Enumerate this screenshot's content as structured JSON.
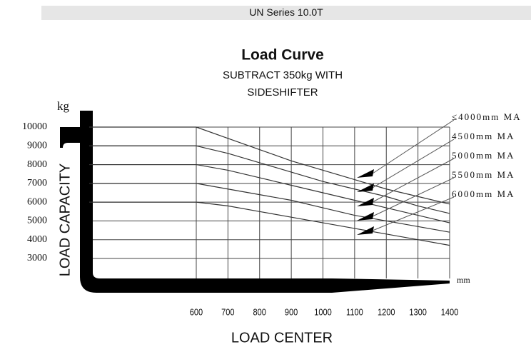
{
  "header": "UN Series 10.0T",
  "chart_data": {
    "type": "line",
    "title": "Load Curve",
    "subtitle": [
      "SUBTRACT 350kg WITH",
      "SIDESHIFTER"
    ],
    "y_unit": "kg",
    "x_unit": "mm",
    "y_label": "LOAD CAPACITY",
    "x_label": "LOAD CENTER",
    "x": [
      600,
      700,
      800,
      900,
      1000,
      1100,
      1200,
      1300,
      1400
    ],
    "xlim": [
      600,
      1400
    ],
    "xticks": [
      600,
      700,
      800,
      900,
      1000,
      1100,
      1200,
      1300,
      1400
    ],
    "ylim": [
      3000,
      10000
    ],
    "yticks": [
      3000,
      4000,
      5000,
      6000,
      7000,
      8000,
      9000,
      10000
    ],
    "grid": true,
    "series": [
      {
        "name": "≤4000mm MA",
        "color": "#333333",
        "values": [
          10000,
          9400,
          8800,
          8200,
          7700,
          7200,
          6700,
          6300,
          5900
        ]
      },
      {
        "name": "4500mm MA",
        "color": "#333333",
        "values": [
          9000,
          8600,
          8100,
          7600,
          7100,
          6700,
          6300,
          5800,
          5400
        ]
      },
      {
        "name": "5000mm MA",
        "color": "#333333",
        "values": [
          8000,
          7700,
          7300,
          6900,
          6500,
          6100,
          5700,
          5300,
          4900
        ]
      },
      {
        "name": "5500mm MA",
        "color": "#333333",
        "values": [
          7000,
          6700,
          6400,
          6100,
          5700,
          5300,
          5000,
          4700,
          4400
        ]
      },
      {
        "name": "6000mm MA",
        "color": "#333333",
        "values": [
          6000,
          5800,
          5500,
          5200,
          4900,
          4600,
          4300,
          4000,
          3700
        ]
      }
    ]
  }
}
